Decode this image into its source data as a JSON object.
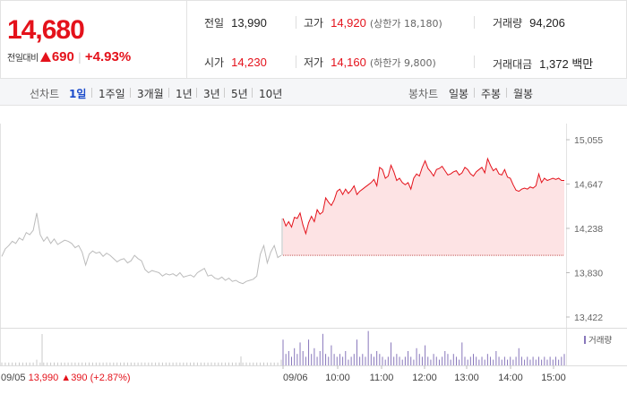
{
  "quote": {
    "price": "14,680",
    "change_label": "전일대비",
    "change_value": "690",
    "change_pct": "+4.93%"
  },
  "stats": {
    "prev_close": {
      "label": "전일",
      "value": "13,990"
    },
    "open": {
      "label": "시가",
      "value": "14,230"
    },
    "high": {
      "label": "고가",
      "value": "14,920",
      "sub": "(상한가 18,180)"
    },
    "low": {
      "label": "저가",
      "value": "14,160",
      "sub": "(하한가 9,800)"
    },
    "volume": {
      "label": "거래량",
      "value": "94,206"
    },
    "turnover": {
      "label": "거래대금",
      "value": "1,372 백만"
    }
  },
  "tabs": {
    "line_label": "선차트",
    "line_items": [
      "1일",
      "1주일",
      "3개월",
      "1년",
      "3년",
      "5년",
      "10년"
    ],
    "candle_label": "봉차트",
    "candle_items": [
      "일봉",
      "주봉",
      "월봉"
    ]
  },
  "colors": {
    "up": "#e4121b",
    "prev_line": "#bbbbbb",
    "volume": "#8877bb",
    "fill": "#fde3e4"
  },
  "chart_data": {
    "type": "line",
    "ylim": [
      13422,
      15055
    ],
    "y_ticks": [
      "15,055",
      "14,647",
      "14,238",
      "13,830",
      "13,422"
    ],
    "x_ticks": [
      "09/06",
      "10:00",
      "11:00",
      "12:00",
      "13:00",
      "14:00",
      "15:00"
    ],
    "legend": "거래량",
    "prev_day": {
      "date_label": "09/05",
      "close": "13,990",
      "change": "390",
      "change_pct": "(+2.87%)",
      "values": [
        13980,
        14050,
        14080,
        14120,
        14100,
        14150,
        14130,
        14200,
        14180,
        14220,
        14380,
        14180,
        14120,
        14160,
        14100,
        14140,
        14090,
        14110,
        14130,
        14120,
        14100,
        14060,
        14080,
        14020,
        13900,
        14000,
        14030,
        14010,
        14020,
        13980,
        14010,
        13990,
        13960,
        13930,
        13950,
        13960,
        13920,
        13940,
        13990,
        13960,
        13940,
        13860,
        13830,
        13850,
        13840,
        13830,
        13800,
        13820,
        13810,
        13820,
        13800,
        13830,
        13790,
        13800,
        13810,
        13790,
        13830,
        13850,
        13870,
        13800,
        13810,
        13780,
        13770,
        13790,
        13760,
        13780,
        13750,
        13760,
        13740,
        13730,
        13750,
        13760,
        13770,
        13800,
        14000,
        14080,
        13920,
        14020,
        14080,
        13970,
        13990
      ]
    },
    "series": [
      {
        "values": [
          14330,
          14260,
          14300,
          14250,
          14340,
          14330,
          14380,
          14270,
          14190,
          14290,
          14350,
          14300,
          14410,
          14370,
          14390,
          14520,
          14480,
          14450,
          14500,
          14580,
          14600,
          14550,
          14600,
          14560,
          14590,
          14630,
          14550,
          14580,
          14600,
          14620,
          14640,
          14660,
          14690,
          14630,
          14800,
          14780,
          14700,
          14720,
          14820,
          14760,
          14680,
          14700,
          14660,
          14640,
          14660,
          14600,
          14700,
          14740,
          14720,
          14800,
          14860,
          14790,
          14760,
          14720,
          14780,
          14790,
          14810,
          14770,
          14730,
          14740,
          14760,
          14770,
          14730,
          14750,
          14800,
          14780,
          14740,
          14720,
          14760,
          14780,
          14800,
          14750,
          14880,
          14820,
          14770,
          14790,
          14740,
          14730,
          14780,
          14710,
          14700,
          14640,
          14590,
          14580,
          14600,
          14610,
          14600,
          14620,
          14610,
          14630,
          14740,
          14660,
          14700,
          14680,
          14690,
          14700,
          14690,
          14700,
          14680,
          14680
        ]
      }
    ],
    "volume_prev": [
      1,
      1,
      1,
      1,
      1,
      1,
      1,
      1,
      1,
      1,
      2,
      1,
      1,
      1,
      1,
      1,
      1,
      1,
      1,
      1,
      1,
      1,
      1,
      1,
      1,
      1,
      1,
      1,
      1,
      1,
      1,
      1,
      1,
      1,
      1,
      1,
      1,
      1,
      1,
      1,
      1,
      1,
      1,
      1,
      1,
      1,
      1,
      1,
      1,
      1,
      1,
      1,
      1,
      1,
      1,
      1,
      1,
      1,
      1,
      1,
      1,
      1,
      1,
      1,
      1,
      1,
      1,
      1,
      1,
      1,
      1,
      1,
      1,
      1,
      1,
      1,
      1,
      1,
      1,
      1,
      2
    ],
    "volume_today": [
      9,
      4,
      5,
      3,
      6,
      4,
      8,
      5,
      3,
      9,
      4,
      6,
      3,
      5,
      11,
      4,
      3,
      7,
      4,
      3,
      4,
      3,
      5,
      2,
      3,
      4,
      9,
      3,
      4,
      3,
      12,
      4,
      3,
      5,
      4,
      3,
      2,
      3,
      8,
      3,
      4,
      3,
      2,
      3,
      5,
      3,
      2,
      6,
      4,
      3,
      7,
      3,
      2,
      4,
      3,
      2,
      3,
      5,
      4,
      2,
      4,
      3,
      2,
      8,
      3,
      2,
      3,
      4,
      3,
      2,
      3,
      2,
      4,
      3,
      2,
      5,
      3,
      2,
      3,
      2,
      3,
      2,
      3,
      6,
      3,
      2,
      3,
      2,
      3,
      2,
      3,
      2,
      3,
      2,
      3,
      2,
      3,
      2,
      3,
      4
    ]
  }
}
